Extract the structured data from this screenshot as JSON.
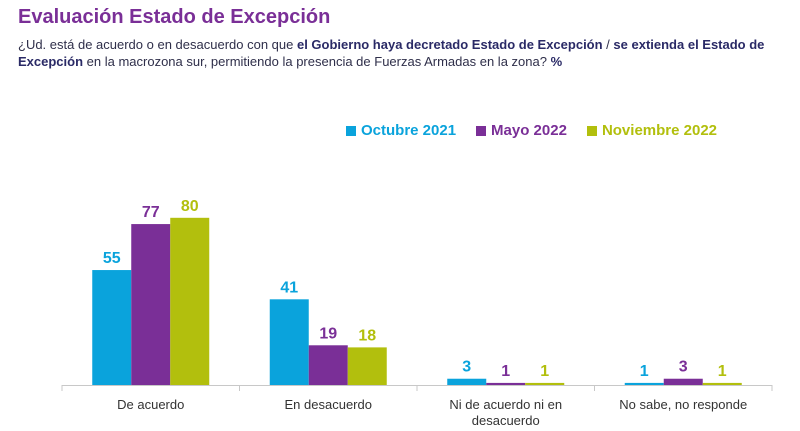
{
  "header": {
    "title": "Evaluación Estado de Excepción",
    "subtitle_parts": [
      {
        "text": "¿Ud. está de acuerdo o en desacuerdo con que ",
        "bold": false
      },
      {
        "text": "el Gobierno haya decretado Estado de Excepción",
        "bold": true
      },
      {
        "text": " / ",
        "bold": false
      },
      {
        "text": "se extienda el Estado de Excepción",
        "bold": true
      },
      {
        "text": " en la macrozona sur, permitiendo la presencia de Fuerzas Armadas en la zona? ",
        "bold": false
      },
      {
        "text": "%",
        "bold": true
      }
    ]
  },
  "chart_data": {
    "type": "bar",
    "title": "",
    "xlabel": "",
    "ylabel": "",
    "ylim": [
      0,
      100
    ],
    "grid": false,
    "legend_position": "top-right",
    "categories": [
      "De acuerdo",
      "En desacuerdo",
      "Ni de acuerdo ni en desacuerdo",
      "No sabe, no responde"
    ],
    "series": [
      {
        "name": "Octubre 2021",
        "color": "#0aa3dc",
        "values": [
          55,
          41,
          3,
          1
        ]
      },
      {
        "name": "Mayo 2022",
        "color": "#7a2f97",
        "values": [
          77,
          19,
          1,
          3
        ]
      },
      {
        "name": "Noviembre 2022",
        "color": "#b2bf0d",
        "values": [
          80,
          18,
          1,
          1
        ]
      }
    ]
  }
}
